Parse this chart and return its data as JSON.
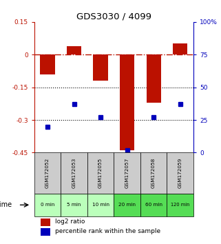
{
  "title": "GDS3030 / 4099",
  "samples": [
    "GSM172052",
    "GSM172053",
    "GSM172055",
    "GSM172057",
    "GSM172058",
    "GSM172059"
  ],
  "time_labels": [
    "0 min",
    "5 min",
    "10 min",
    "20 min",
    "60 min",
    "120 min"
  ],
  "log2_ratio": [
    -0.09,
    0.04,
    -0.12,
    -0.44,
    -0.22,
    0.05
  ],
  "percentile_rank": [
    20,
    37,
    27,
    2,
    27,
    37
  ],
  "ylim_left": [
    -0.45,
    0.15
  ],
  "ylim_right": [
    0,
    100
  ],
  "yticks_left": [
    0.15,
    0,
    -0.15,
    -0.3,
    -0.45
  ],
  "yticks_right": [
    100,
    75,
    50,
    25,
    0
  ],
  "bar_color": "#bb1100",
  "dot_color": "#0000bb",
  "hline_color": "#bb1100",
  "dotted_line_color": "#000000",
  "bg_color_sample": "#cccccc",
  "bg_color_time_light": "#bbffbb",
  "bg_color_time_dark": "#44cc44",
  "legend_bar_label": "log2 ratio",
  "legend_dot_label": "percentile rank within the sample",
  "time_row_label": "time",
  "time_colors": [
    "#bbffbb",
    "#bbffbb",
    "#bbffbb",
    "#55dd55",
    "#55dd55",
    "#55dd55"
  ]
}
